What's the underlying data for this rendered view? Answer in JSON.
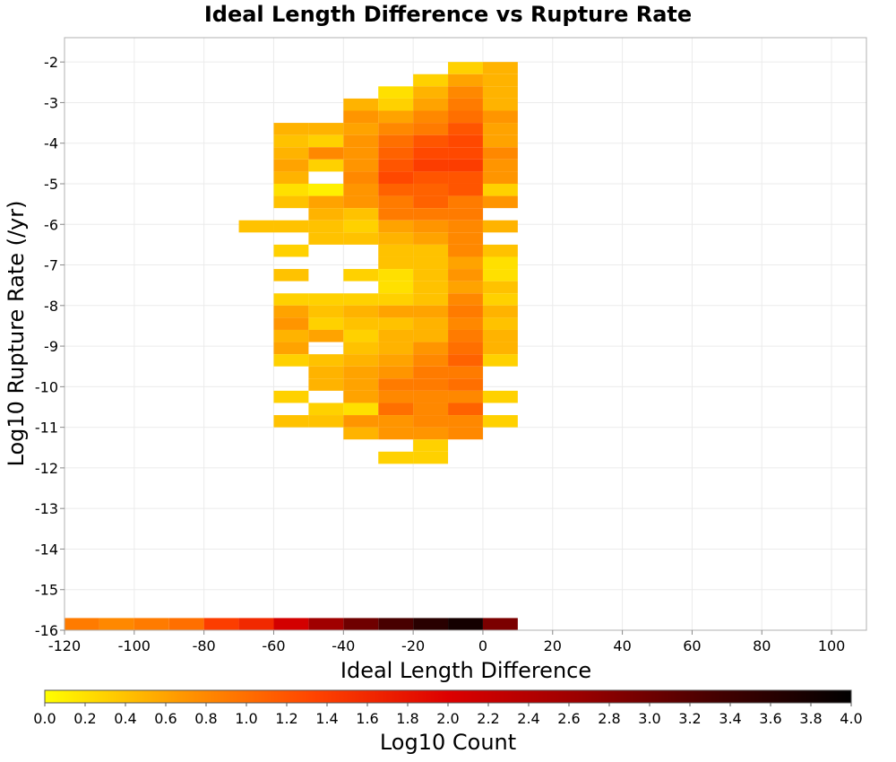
{
  "chart_data": {
    "type": "heatmap",
    "title": "Ideal Length Difference vs Rupture Rate",
    "xlabel": "Ideal Length Difference",
    "ylabel": "Log10 Rupture Rate (/yr)",
    "colorbar_label": "Log10 Count",
    "xlim": [
      -120,
      110
    ],
    "ylim": [
      -16,
      -1.4
    ],
    "x_ticks": [
      "-120",
      "-100",
      "-80",
      "-60",
      "-40",
      "-20",
      "0",
      "20",
      "40",
      "60",
      "80",
      "100"
    ],
    "y_ticks": [
      "-2",
      "-3",
      "-4",
      "-5",
      "-6",
      "-7",
      "-8",
      "-9",
      "-10",
      "-11",
      "-12",
      "-13",
      "-14",
      "-15",
      "-16"
    ],
    "colorbar_ticks": [
      "0.0",
      "0.2",
      "0.4",
      "0.6",
      "0.8",
      "1.0",
      "1.2",
      "1.4",
      "1.6",
      "1.8",
      "2.0",
      "2.2",
      "2.4",
      "2.6",
      "2.8",
      "3.0",
      "3.2",
      "3.4",
      "3.6",
      "3.8",
      "4.0"
    ],
    "colorbar_range": [
      0,
      4
    ],
    "colorscale": [
      "#ffff00",
      "#ff9900",
      "#ff4400",
      "#dd0000",
      "#990000",
      "#440000",
      "#000000"
    ],
    "x_bin_width": 10,
    "y_bin_height": 0.3,
    "grid": true,
    "legend": "colorbar bottom",
    "rows": [
      {
        "y": -2.3,
        "cells": [
          {
            "x": -10,
            "v": 0.3
          },
          {
            "x": 0,
            "v": 0.5
          }
        ]
      },
      {
        "y": -2.6,
        "cells": [
          {
            "x": -20,
            "v": 0.3
          },
          {
            "x": -10,
            "v": 0.6
          },
          {
            "x": 0,
            "v": 0.5
          }
        ]
      },
      {
        "y": -2.9,
        "cells": [
          {
            "x": -30,
            "v": 0.2
          },
          {
            "x": -20,
            "v": 0.5
          },
          {
            "x": -10,
            "v": 0.8
          },
          {
            "x": 0,
            "v": 0.5
          }
        ]
      },
      {
        "y": -3.2,
        "cells": [
          {
            "x": -40,
            "v": 0.5
          },
          {
            "x": -30,
            "v": 0.3
          },
          {
            "x": -20,
            "v": 0.6
          },
          {
            "x": -10,
            "v": 0.9
          },
          {
            "x": 0,
            "v": 0.5
          }
        ]
      },
      {
        "y": -3.5,
        "cells": [
          {
            "x": -40,
            "v": 0.7
          },
          {
            "x": -30,
            "v": 0.6
          },
          {
            "x": -20,
            "v": 0.8
          },
          {
            "x": -10,
            "v": 1.0
          },
          {
            "x": 0,
            "v": 0.7
          }
        ]
      },
      {
        "y": -3.8,
        "cells": [
          {
            "x": -60,
            "v": 0.5
          },
          {
            "x": -50,
            "v": 0.5
          },
          {
            "x": -40,
            "v": 0.6
          },
          {
            "x": -30,
            "v": 0.8
          },
          {
            "x": -20,
            "v": 0.9
          },
          {
            "x": -10,
            "v": 1.2
          },
          {
            "x": 0,
            "v": 0.6
          }
        ]
      },
      {
        "y": -4.1,
        "cells": [
          {
            "x": -60,
            "v": 0.4
          },
          {
            "x": -50,
            "v": 0.3
          },
          {
            "x": -40,
            "v": 0.7
          },
          {
            "x": -30,
            "v": 1.0
          },
          {
            "x": -20,
            "v": 1.2
          },
          {
            "x": -10,
            "v": 1.3
          },
          {
            "x": 0,
            "v": 0.6
          }
        ]
      },
      {
        "y": -4.4,
        "cells": [
          {
            "x": -60,
            "v": 0.5
          },
          {
            "x": -50,
            "v": 0.8
          },
          {
            "x": -40,
            "v": 0.7
          },
          {
            "x": -30,
            "v": 1.1
          },
          {
            "x": -20,
            "v": 1.3
          },
          {
            "x": -10,
            "v": 1.3
          },
          {
            "x": 0,
            "v": 0.8
          }
        ]
      },
      {
        "y": -4.7,
        "cells": [
          {
            "x": -60,
            "v": 0.6
          },
          {
            "x": -50,
            "v": 0.3
          },
          {
            "x": -40,
            "v": 0.7
          },
          {
            "x": -30,
            "v": 1.2
          },
          {
            "x": -20,
            "v": 1.4
          },
          {
            "x": -10,
            "v": 1.4
          },
          {
            "x": 0,
            "v": 0.7
          }
        ]
      },
      {
        "y": -5.0,
        "cells": [
          {
            "x": -60,
            "v": 0.5
          },
          {
            "x": -40,
            "v": 0.8
          },
          {
            "x": -30,
            "v": 1.3
          },
          {
            "x": -20,
            "v": 1.2
          },
          {
            "x": -10,
            "v": 1.2
          },
          {
            "x": 0,
            "v": 0.7
          }
        ]
      },
      {
        "y": -5.3,
        "cells": [
          {
            "x": -60,
            "v": 0.2
          },
          {
            "x": -50,
            "v": 0.1
          },
          {
            "x": -40,
            "v": 0.7
          },
          {
            "x": -30,
            "v": 1.1
          },
          {
            "x": -20,
            "v": 1.1
          },
          {
            "x": -10,
            "v": 1.2
          },
          {
            "x": 0,
            "v": 0.3
          }
        ]
      },
      {
        "y": -5.6,
        "cells": [
          {
            "x": -60,
            "v": 0.4
          },
          {
            "x": -50,
            "v": 0.6
          },
          {
            "x": -40,
            "v": 0.7
          },
          {
            "x": -30,
            "v": 0.9
          },
          {
            "x": -20,
            "v": 1.1
          },
          {
            "x": -10,
            "v": 0.9
          },
          {
            "x": 0,
            "v": 0.7
          }
        ]
      },
      {
        "y": -5.9,
        "cells": [
          {
            "x": -50,
            "v": 0.5
          },
          {
            "x": -40,
            "v": 0.4
          },
          {
            "x": -30,
            "v": 0.9
          },
          {
            "x": -20,
            "v": 0.9
          },
          {
            "x": -10,
            "v": 0.9
          }
        ]
      },
      {
        "y": -6.2,
        "cells": [
          {
            "x": -70,
            "v": 0.4
          },
          {
            "x": -60,
            "v": 0.4
          },
          {
            "x": -50,
            "v": 0.4
          },
          {
            "x": -40,
            "v": 0.3
          },
          {
            "x": -30,
            "v": 0.6
          },
          {
            "x": -20,
            "v": 0.7
          },
          {
            "x": -10,
            "v": 0.8
          },
          {
            "x": 0,
            "v": 0.5
          }
        ]
      },
      {
        "y": -6.5,
        "cells": [
          {
            "x": -50,
            "v": 0.4
          },
          {
            "x": -40,
            "v": 0.4
          },
          {
            "x": -30,
            "v": 0.5
          },
          {
            "x": -20,
            "v": 0.6
          },
          {
            "x": -10,
            "v": 0.8
          }
        ]
      },
      {
        "y": -6.8,
        "cells": [
          {
            "x": -60,
            "v": 0.3
          },
          {
            "x": -30,
            "v": 0.4
          },
          {
            "x": -20,
            "v": 0.4
          },
          {
            "x": -10,
            "v": 0.8
          },
          {
            "x": 0,
            "v": 0.4
          }
        ]
      },
      {
        "y": -7.1,
        "cells": [
          {
            "x": -30,
            "v": 0.4
          },
          {
            "x": -20,
            "v": 0.4
          },
          {
            "x": -10,
            "v": 0.6
          },
          {
            "x": 0,
            "v": 0.2
          }
        ]
      },
      {
        "y": -7.4,
        "cells": [
          {
            "x": -60,
            "v": 0.4
          },
          {
            "x": -40,
            "v": 0.3
          },
          {
            "x": -30,
            "v": 0.2
          },
          {
            "x": -20,
            "v": 0.4
          },
          {
            "x": -10,
            "v": 0.7
          },
          {
            "x": 0,
            "v": 0.2
          }
        ]
      },
      {
        "y": -7.7,
        "cells": [
          {
            "x": -30,
            "v": 0.2
          },
          {
            "x": -20,
            "v": 0.4
          },
          {
            "x": -10,
            "v": 0.6
          },
          {
            "x": 0,
            "v": 0.4
          }
        ]
      },
      {
        "y": -8.0,
        "cells": [
          {
            "x": -60,
            "v": 0.3
          },
          {
            "x": -50,
            "v": 0.3
          },
          {
            "x": -40,
            "v": 0.3
          },
          {
            "x": -30,
            "v": 0.3
          },
          {
            "x": -20,
            "v": 0.4
          },
          {
            "x": -10,
            "v": 0.8
          },
          {
            "x": 0,
            "v": 0.3
          }
        ]
      },
      {
        "y": -8.3,
        "cells": [
          {
            "x": -60,
            "v": 0.6
          },
          {
            "x": -50,
            "v": 0.4
          },
          {
            "x": -40,
            "v": 0.5
          },
          {
            "x": -30,
            "v": 0.6
          },
          {
            "x": -20,
            "v": 0.6
          },
          {
            "x": -10,
            "v": 0.9
          },
          {
            "x": 0,
            "v": 0.5
          }
        ]
      },
      {
        "y": -8.6,
        "cells": [
          {
            "x": -60,
            "v": 0.7
          },
          {
            "x": -50,
            "v": 0.3
          },
          {
            "x": -40,
            "v": 0.4
          },
          {
            "x": -30,
            "v": 0.4
          },
          {
            "x": -20,
            "v": 0.5
          },
          {
            "x": -10,
            "v": 0.8
          },
          {
            "x": 0,
            "v": 0.4
          }
        ]
      },
      {
        "y": -8.9,
        "cells": [
          {
            "x": -60,
            "v": 0.5
          },
          {
            "x": -50,
            "v": 0.6
          },
          {
            "x": -40,
            "v": 0.3
          },
          {
            "x": -30,
            "v": 0.5
          },
          {
            "x": -20,
            "v": 0.5
          },
          {
            "x": -10,
            "v": 0.9
          },
          {
            "x": 0,
            "v": 0.5
          }
        ]
      },
      {
        "y": -9.2,
        "cells": [
          {
            "x": -60,
            "v": 0.6
          },
          {
            "x": -40,
            "v": 0.4
          },
          {
            "x": -30,
            "v": 0.5
          },
          {
            "x": -20,
            "v": 0.7
          },
          {
            "x": -10,
            "v": 1.0
          },
          {
            "x": 0,
            "v": 0.5
          }
        ]
      },
      {
        "y": -9.5,
        "cells": [
          {
            "x": -60,
            "v": 0.3
          },
          {
            "x": -50,
            "v": 0.4
          },
          {
            "x": -40,
            "v": 0.5
          },
          {
            "x": -30,
            "v": 0.6
          },
          {
            "x": -20,
            "v": 0.8
          },
          {
            "x": -10,
            "v": 1.1
          },
          {
            "x": 0,
            "v": 0.3
          }
        ]
      },
      {
        "y": -9.8,
        "cells": [
          {
            "x": -50,
            "v": 0.5
          },
          {
            "x": -40,
            "v": 0.6
          },
          {
            "x": -30,
            "v": 0.7
          },
          {
            "x": -20,
            "v": 0.9
          },
          {
            "x": -10,
            "v": 0.9
          }
        ]
      },
      {
        "y": -10.1,
        "cells": [
          {
            "x": -50,
            "v": 0.5
          },
          {
            "x": -40,
            "v": 0.6
          },
          {
            "x": -30,
            "v": 0.9
          },
          {
            "x": -20,
            "v": 0.9
          },
          {
            "x": -10,
            "v": 1.0
          }
        ]
      },
      {
        "y": -10.4,
        "cells": [
          {
            "x": -60,
            "v": 0.3
          },
          {
            "x": -40,
            "v": 0.6
          },
          {
            "x": -30,
            "v": 0.8
          },
          {
            "x": -20,
            "v": 0.8
          },
          {
            "x": -10,
            "v": 0.8
          },
          {
            "x": 0,
            "v": 0.3
          }
        ]
      },
      {
        "y": -10.7,
        "cells": [
          {
            "x": -50,
            "v": 0.3
          },
          {
            "x": -40,
            "v": 0.2
          },
          {
            "x": -30,
            "v": 1.0
          },
          {
            "x": -20,
            "v": 0.8
          },
          {
            "x": -10,
            "v": 1.1
          }
        ]
      },
      {
        "y": -11.0,
        "cells": [
          {
            "x": -60,
            "v": 0.4
          },
          {
            "x": -50,
            "v": 0.4
          },
          {
            "x": -40,
            "v": 0.7
          },
          {
            "x": -30,
            "v": 0.7
          },
          {
            "x": -20,
            "v": 0.8
          },
          {
            "x": -10,
            "v": 0.8
          },
          {
            "x": 0,
            "v": 0.3
          }
        ]
      },
      {
        "y": -11.3,
        "cells": [
          {
            "x": -40,
            "v": 0.5
          },
          {
            "x": -30,
            "v": 0.7
          },
          {
            "x": -20,
            "v": 0.7
          },
          {
            "x": -10,
            "v": 0.8
          }
        ]
      },
      {
        "y": -11.6,
        "cells": [
          {
            "x": -20,
            "v": 0.3
          }
        ]
      },
      {
        "y": -11.9,
        "cells": [
          {
            "x": -30,
            "v": 0.3
          },
          {
            "x": -20,
            "v": 0.3
          }
        ]
      },
      {
        "y": -16.0,
        "cells": [
          {
            "x": -120,
            "v": 0.9
          },
          {
            "x": -110,
            "v": 0.8
          },
          {
            "x": -100,
            "v": 0.9
          },
          {
            "x": -90,
            "v": 1.0
          },
          {
            "x": -80,
            "v": 1.4
          },
          {
            "x": -70,
            "v": 1.6
          },
          {
            "x": -60,
            "v": 2.1
          },
          {
            "x": -50,
            "v": 2.6
          },
          {
            "x": -40,
            "v": 3.0
          },
          {
            "x": -30,
            "v": 3.3
          },
          {
            "x": -20,
            "v": 3.6
          },
          {
            "x": -10,
            "v": 3.8
          },
          {
            "x": 0,
            "v": 2.9
          }
        ]
      }
    ]
  }
}
